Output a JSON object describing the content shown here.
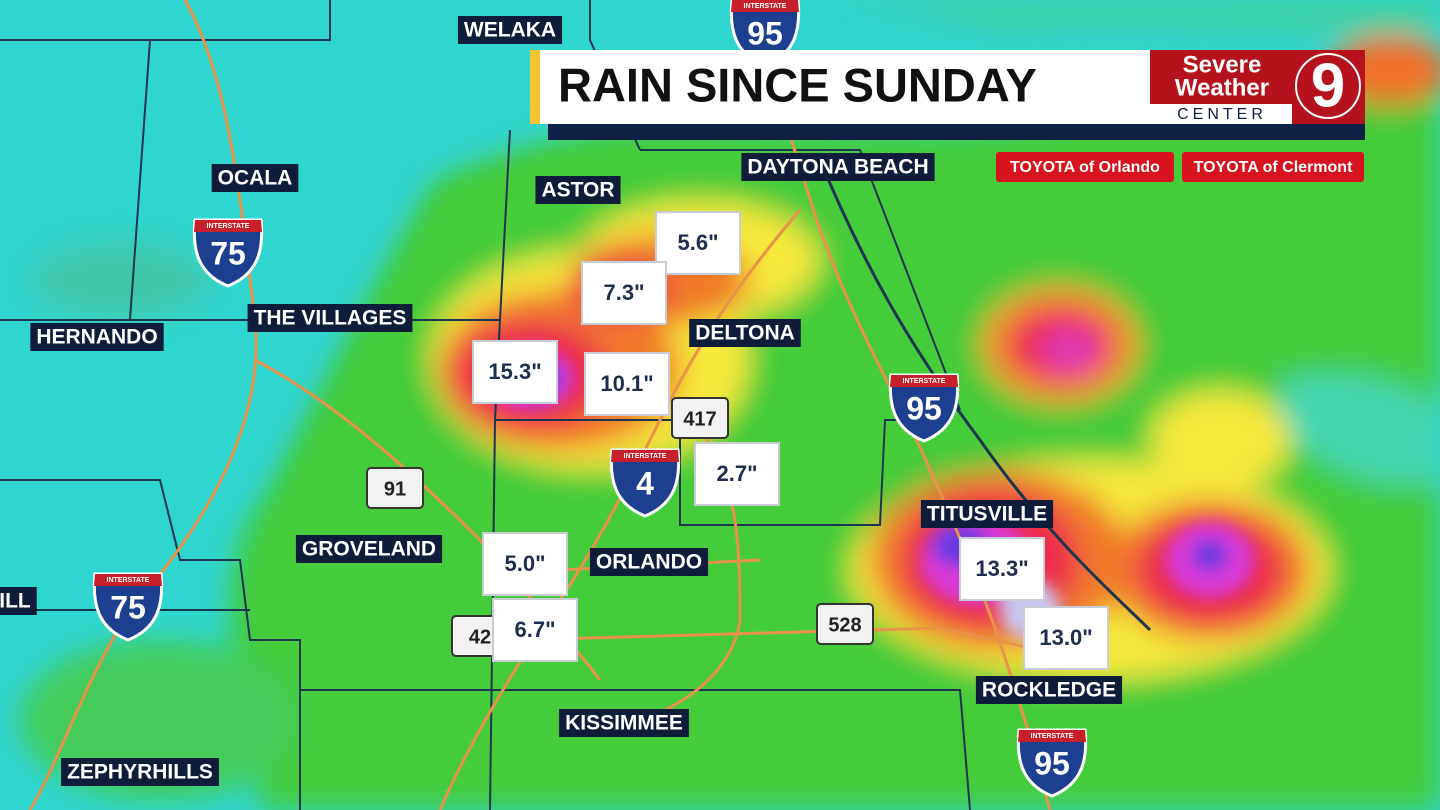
{
  "header": {
    "title": "RAIN SINCE SUNDAY"
  },
  "logo": {
    "line1": "Severe",
    "line2": "Weather",
    "line3": "CENTER",
    "channel": "9"
  },
  "sponsors": [
    "TOYOTA of Orlando",
    "TOYOTA of Clermont"
  ],
  "cities": [
    "WELAKA",
    "OCALA",
    "ASTOR",
    "DAYTONA BEACH",
    "THE VILLAGES",
    "HERNANDO",
    "DELTONA",
    "GROVELAND",
    "ORLANDO",
    "TITUSVILLE",
    "ROCKLEDGE",
    "KISSIMMEE",
    "ZEPHYRHILLS",
    "ILL"
  ],
  "rain_totals": [
    "5.6\"",
    "7.3\"",
    "15.3\"",
    "10.1\"",
    "2.7\"",
    "5.0\"",
    "6.7\"",
    "13.3\"",
    "13.0\""
  ],
  "shields": {
    "interstate_label": "INTERSTATE",
    "interstates": [
      "95",
      "75",
      "95",
      "4",
      "75",
      "95"
    ],
    "state_roads": [
      "417",
      "91",
      "528",
      "42"
    ]
  }
}
